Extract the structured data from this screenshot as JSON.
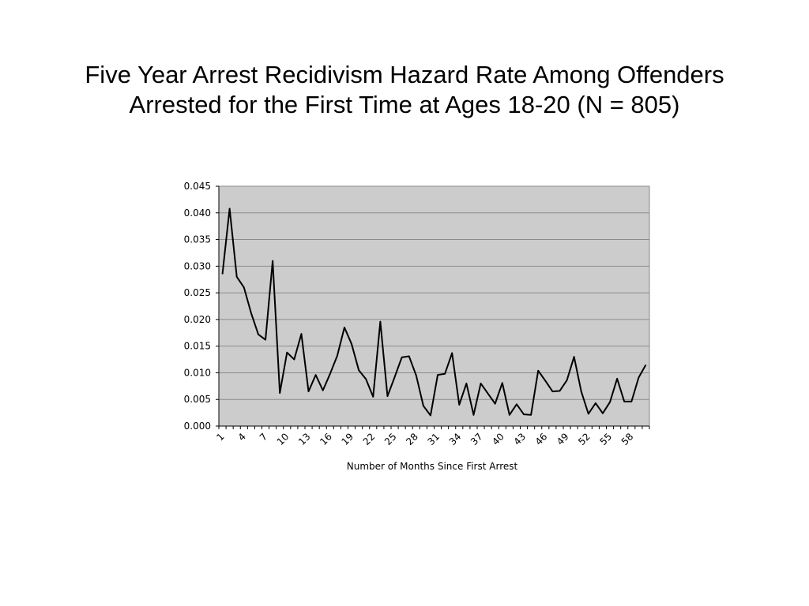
{
  "title": {
    "line1": "Five Year Arrest Recidivism Hazard Rate Among Offenders",
    "line2": "Arrested for the First Time at Ages 18-20 (N = 805)"
  },
  "chart_data": {
    "type": "line",
    "title": "Five Year Arrest Recidivism Hazard Rate Among Offenders Arrested for the First Time at Ages 18-20 (N = 805)",
    "xlabel": "Number of Months Since First Arrest",
    "ylabel": "",
    "x": [
      1,
      2,
      3,
      4,
      5,
      6,
      7,
      8,
      9,
      10,
      11,
      12,
      13,
      14,
      15,
      16,
      17,
      18,
      19,
      20,
      21,
      22,
      23,
      24,
      25,
      26,
      27,
      28,
      29,
      30,
      31,
      32,
      33,
      34,
      35,
      36,
      37,
      38,
      39,
      40,
      41,
      42,
      43,
      44,
      45,
      46,
      47,
      48,
      49,
      50,
      51,
      52,
      53,
      54,
      55,
      56,
      57,
      58,
      59,
      60
    ],
    "x_tick_labels": [
      "1",
      "4",
      "7",
      "10",
      "13",
      "16",
      "19",
      "22",
      "25",
      "28",
      "31",
      "34",
      "37",
      "40",
      "43",
      "46",
      "49",
      "52",
      "55",
      "58"
    ],
    "y_tick_labels": [
      "0.000",
      "0.005",
      "0.010",
      "0.015",
      "0.020",
      "0.025",
      "0.030",
      "0.035",
      "0.040",
      "0.045"
    ],
    "ylim": [
      0,
      0.045
    ],
    "grid": true,
    "legend": "none",
    "series": [
      {
        "values": [
          0.0285,
          0.0408,
          0.028,
          0.026,
          0.0212,
          0.0172,
          0.0162,
          0.031,
          0.0062,
          0.0138,
          0.0125,
          0.0173,
          0.0065,
          0.0096,
          0.0067,
          0.0098,
          0.0132,
          0.0185,
          0.0154,
          0.0105,
          0.0088,
          0.0055,
          0.0196,
          0.0056,
          0.0092,
          0.0129,
          0.0131,
          0.0095,
          0.0038,
          0.002,
          0.0096,
          0.0098,
          0.0137,
          0.004,
          0.008,
          0.0021,
          0.008,
          0.0061,
          0.0042,
          0.0081,
          0.0021,
          0.0041,
          0.0022,
          0.0021,
          0.0104,
          0.0085,
          0.0065,
          0.0066,
          0.0086,
          0.013,
          0.0065,
          0.0023,
          0.0043,
          0.0024,
          0.0045,
          0.0089,
          0.0046,
          0.0046,
          0.0091,
          0.0115
        ],
        "color": "#000000"
      }
    ],
    "plot_background": "#cccccc",
    "grid_color": "#8c8c8c"
  }
}
